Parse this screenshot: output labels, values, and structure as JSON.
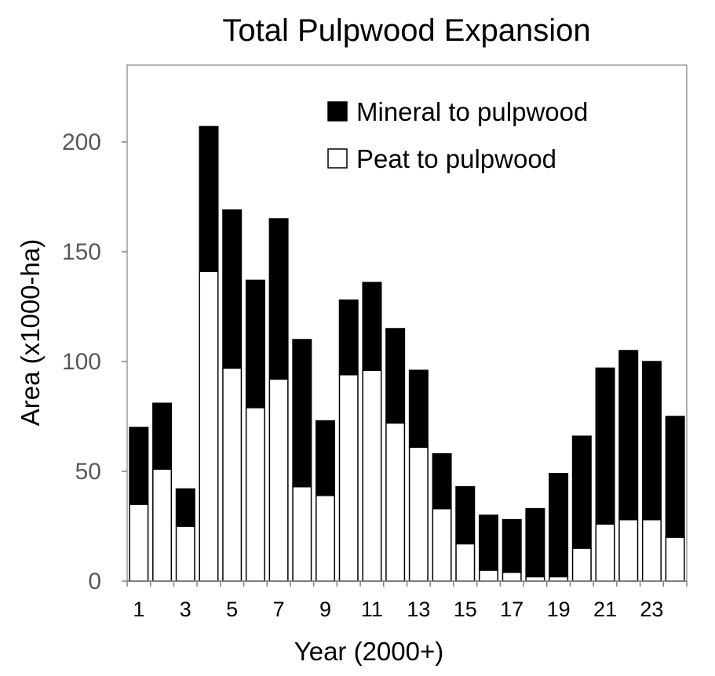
{
  "chart_data": {
    "type": "bar",
    "stacked": true,
    "title": "Total Pulpwood Expansion",
    "xlabel": "Year (2000+)",
    "ylabel": "Area (x1000-ha)",
    "ylim": [
      0,
      235
    ],
    "yticks": [
      0,
      50,
      100,
      150,
      200
    ],
    "categories": [
      "1",
      "2",
      "3",
      "4",
      "5",
      "6",
      "7",
      "8",
      "9",
      "10",
      "11",
      "12",
      "13",
      "14",
      "15",
      "16",
      "17",
      "18",
      "19",
      "20",
      "21",
      "22",
      "23",
      "24"
    ],
    "x_tick_labels": [
      "1",
      "3",
      "5",
      "7",
      "9",
      "11",
      "13",
      "15",
      "17",
      "19",
      "21",
      "23"
    ],
    "series": [
      {
        "name": "Peat to pulpwood",
        "color": "#ffffff",
        "values": [
          35,
          51,
          25,
          141,
          97,
          79,
          92,
          43,
          39,
          94,
          96,
          72,
          61,
          33,
          17,
          5,
          4,
          2,
          2,
          15,
          26,
          28,
          28,
          20
        ]
      },
      {
        "name": "Mineral to pulpwood",
        "color": "#000000",
        "values": [
          35,
          30,
          17,
          66,
          72,
          58,
          73,
          67,
          34,
          34,
          40,
          43,
          35,
          25,
          26,
          25,
          24,
          31,
          47,
          51,
          71,
          77,
          72,
          55
        ]
      }
    ],
    "legend": [
      "Mineral to pulpwood",
      "Peat to pulpwood"
    ],
    "legend_position": "top-right"
  }
}
